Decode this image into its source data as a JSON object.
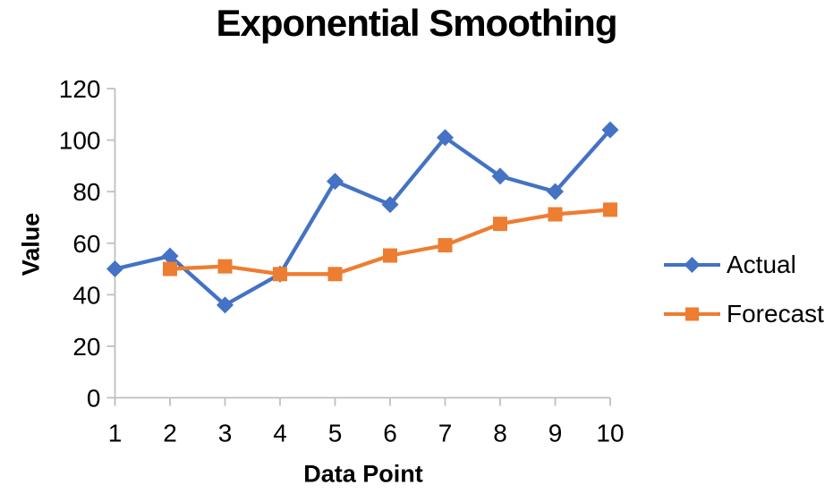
{
  "title": "Exponential Smoothing",
  "chart_data": {
    "type": "line",
    "title": "Exponential Smoothing",
    "xlabel": "Data Point",
    "ylabel": "Value",
    "x": [
      1,
      2,
      3,
      4,
      5,
      6,
      7,
      8,
      9,
      10
    ],
    "series": [
      {
        "name": "Actual",
        "color": "#4472C4",
        "marker": "diamond",
        "values": [
          50,
          55,
          36,
          48,
          84,
          75,
          101,
          86,
          80,
          104
        ]
      },
      {
        "name": "Forecast",
        "color": "#ED7D31",
        "marker": "square",
        "values": [
          null,
          50,
          51,
          48,
          48,
          55.2,
          59.2,
          67.5,
          71.2,
          73
        ]
      }
    ],
    "ylim": [
      0,
      120
    ],
    "ytick_step": 20,
    "grid": false,
    "legend_position": "right",
    "axis_color": "#BFBFBF",
    "text_color": "#000000"
  }
}
